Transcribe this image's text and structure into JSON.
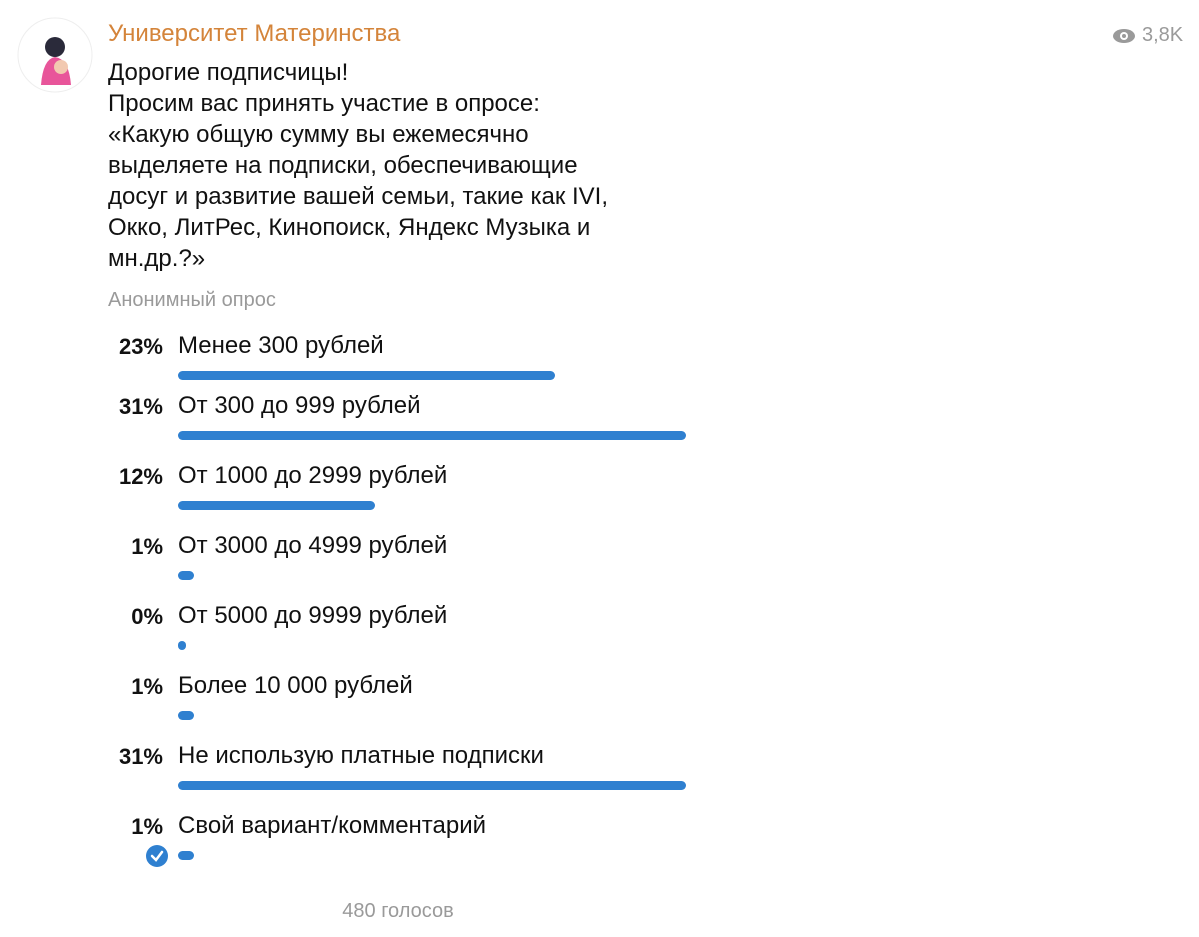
{
  "channel": {
    "name": "Университет Материнства",
    "views": "3,8K"
  },
  "message": {
    "lines": [
      "Дорогие подписчицы!",
      "Просим вас принять участие в опросе:",
      "«Какую общую сумму вы ежемесячно",
      "выделяете на подписки, обеспечивающие",
      "досуг и развитие вашей семьи, такие как IVI,",
      "Окко, ЛитРес, Кинопоиск, Яндекс Музыка и",
      "мн.др.?»"
    ]
  },
  "poll": {
    "type": "Анонимный опрос",
    "options": [
      {
        "percent": 23,
        "label": "23%",
        "text": "Менее 300 рублей"
      },
      {
        "percent": 31,
        "label": "31%",
        "text": "От 300 до 999 рублей"
      },
      {
        "percent": 12,
        "label": "12%",
        "text": "От 1000 до 2999 рублей"
      },
      {
        "percent": 1,
        "label": "1%",
        "text": "От 3000 до 4999 рублей"
      },
      {
        "percent": 0,
        "label": "0%",
        "text": "От 5000 до 9999 рублей"
      },
      {
        "percent": 1,
        "label": "1%",
        "text": "Более 10 000 рублей"
      },
      {
        "percent": 31,
        "label": "31%",
        "text": "Не использую платные подписки"
      },
      {
        "percent": 1,
        "label": "1%",
        "text": "Свой вариант/комментарий",
        "chosen": true
      }
    ],
    "votes": "480 голосов"
  }
}
